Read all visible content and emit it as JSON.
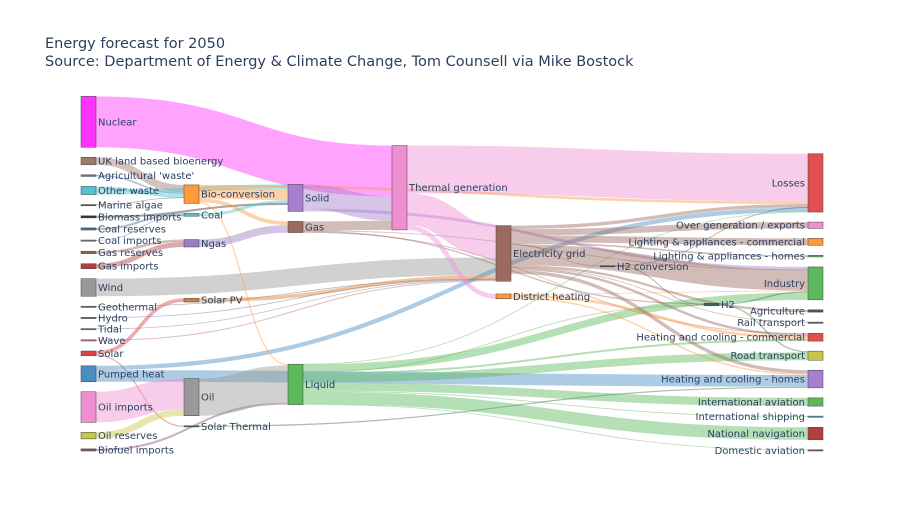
{
  "chart_data": {
    "type": "sankey",
    "title": "Energy forecast for 2050",
    "subtitle": "Source: Department of Energy & Climate Change, Tom Counsell via Mike Bostock",
    "nodes": [
      {
        "id": 0,
        "label": "Nuclear",
        "color": "#ff33ff",
        "col": 0
      },
      {
        "id": 1,
        "label": "UK land based bioenergy",
        "color": "#a0786e",
        "col": 0
      },
      {
        "id": 2,
        "label": "Agricultural 'waste'",
        "color": "#4a7fb5",
        "col": 0
      },
      {
        "id": 3,
        "label": "Other waste",
        "color": "#4fc3cf",
        "col": 0
      },
      {
        "id": 4,
        "label": "Marine algae",
        "color": "#555555",
        "col": 0
      },
      {
        "id": 5,
        "label": "Coal reserves",
        "color": "#4a6f8f",
        "col": 0
      },
      {
        "id": 6,
        "label": "Biomass imports",
        "color": "#333333",
        "col": 0
      },
      {
        "id": 7,
        "label": "Coal imports",
        "color": "#777777",
        "col": 0
      },
      {
        "id": 8,
        "label": "Gas reserves",
        "color": "#9c6a60",
        "col": 0
      },
      {
        "id": 9,
        "label": "Gas imports",
        "color": "#b04040",
        "col": 0
      },
      {
        "id": 10,
        "label": "Wind",
        "color": "#999999",
        "col": 0
      },
      {
        "id": 11,
        "label": "Geothermal",
        "color": "#666666",
        "col": 0
      },
      {
        "id": 12,
        "label": "Hydro",
        "color": "#4a6f8f",
        "col": 0
      },
      {
        "id": 13,
        "label": "Tidal",
        "color": "#7f6fa8",
        "col": 0
      },
      {
        "id": 14,
        "label": "Wave",
        "color": "#c07b7b",
        "col": 0
      },
      {
        "id": 15,
        "label": "Solar",
        "color": "#d94444",
        "col": 0
      },
      {
        "id": 16,
        "label": "Pumped heat",
        "color": "#4a8ec2",
        "col": 0
      },
      {
        "id": 17,
        "label": "Oil imports",
        "color": "#f08ed2",
        "col": 0
      },
      {
        "id": 18,
        "label": "Oil reserves",
        "color": "#c7c74a",
        "col": 0
      },
      {
        "id": 19,
        "label": "Biofuel imports",
        "color": "#8a4f7d",
        "col": 0
      },
      {
        "id": 20,
        "label": "Bio-conversion",
        "color": "#ff9a3c",
        "col": 1
      },
      {
        "id": 21,
        "label": "Coal",
        "color": "#4fc3cf",
        "col": 1
      },
      {
        "id": 22,
        "label": "Ngas",
        "color": "#9a7fc0",
        "col": 1
      },
      {
        "id": 23,
        "label": "Solar PV",
        "color": "#e07b2d",
        "col": 1
      },
      {
        "id": 24,
        "label": "Solar Thermal",
        "color": "#3a6b4a",
        "col": 1
      },
      {
        "id": 25,
        "label": "Oil",
        "color": "#999999",
        "col": 1
      },
      {
        "id": 26,
        "label": "Solid",
        "color": "#a67fcf",
        "col": 2
      },
      {
        "id": 27,
        "label": "Gas",
        "color": "#9c6a60",
        "col": 2
      },
      {
        "id": 28,
        "label": "Liquid",
        "color": "#5cb85c",
        "col": 2
      },
      {
        "id": 29,
        "label": "Thermal generation",
        "color": "#f08ed2",
        "col": 3
      },
      {
        "id": 30,
        "label": "District heating",
        "color": "#ff9a3c",
        "col": 4
      },
      {
        "id": 31,
        "label": "Electricity grid",
        "color": "#9c6a60",
        "col": 4
      },
      {
        "id": 32,
        "label": "H2 conversion",
        "color": "#444444",
        "col": 5
      },
      {
        "id": 33,
        "label": "H2",
        "color": "#3a6b4a",
        "col": 6
      },
      {
        "id": 34,
        "label": "Losses",
        "color": "#e05050",
        "col": 7
      },
      {
        "id": 35,
        "label": "Over generation / exports",
        "color": "#f08ed2",
        "col": 7
      },
      {
        "id": 36,
        "label": "Lighting & appliances - commercial",
        "color": "#ff9a3c",
        "col": 7
      },
      {
        "id": 37,
        "label": "Lighting & appliances - homes",
        "color": "#5cb85c",
        "col": 7
      },
      {
        "id": 38,
        "label": "Industry",
        "color": "#5cb85c",
        "col": 7
      },
      {
        "id": 39,
        "label": "Agriculture",
        "color": "#555555",
        "col": 7
      },
      {
        "id": 40,
        "label": "Rail transport",
        "color": "#555555",
        "col": 7
      },
      {
        "id": 41,
        "label": "Heating and cooling - commercial",
        "color": "#e05050",
        "col": 7
      },
      {
        "id": 42,
        "label": "Heating and cooling - homes",
        "color": "#a67fcf",
        "col": 7
      },
      {
        "id": 43,
        "label": "Road transport",
        "color": "#c7c74a",
        "col": 7
      },
      {
        "id": 44,
        "label": "International aviation",
        "color": "#5cb85c",
        "col": 7
      },
      {
        "id": 45,
        "label": "International shipping",
        "color": "#4a8ec2",
        "col": 7
      },
      {
        "id": 46,
        "label": "National navigation",
        "color": "#b04040",
        "col": 7
      },
      {
        "id": 47,
        "label": "Domestic aviation",
        "color": "#8a4f7d",
        "col": 7
      }
    ],
    "links": [
      {
        "s": 0,
        "t": 29,
        "v": 839.978
      },
      {
        "s": 1,
        "t": 20,
        "v": 124.729
      },
      {
        "s": 2,
        "t": 20,
        "v": 26.862
      },
      {
        "s": 3,
        "t": 20,
        "v": 56.691
      },
      {
        "s": 3,
        "t": 26,
        "v": 77.81
      },
      {
        "s": 4,
        "t": 20,
        "v": 4.375
      },
      {
        "s": 5,
        "t": 21,
        "v": 35
      },
      {
        "s": 6,
        "t": 26,
        "v": 35
      },
      {
        "s": 7,
        "t": 21,
        "v": 11.606
      },
      {
        "s": 8,
        "t": 22,
        "v": 40.719
      },
      {
        "s": 9,
        "t": 22,
        "v": 82.233
      },
      {
        "s": 10,
        "t": 31,
        "v": 289.366
      },
      {
        "s": 11,
        "t": 31,
        "v": 7.013
      },
      {
        "s": 12,
        "t": 31,
        "v": 6.995
      },
      {
        "s": 13,
        "t": 31,
        "v": 9.452
      },
      {
        "s": 14,
        "t": 31,
        "v": 19.013
      },
      {
        "s": 15,
        "t": 23,
        "v": 59.901
      },
      {
        "s": 15,
        "t": 24,
        "v": 19.263
      },
      {
        "s": 16,
        "t": 42,
        "v": 193.026
      },
      {
        "s": 16,
        "t": 34,
        "v": 70.672
      },
      {
        "s": 17,
        "t": 25,
        "v": 504.287
      },
      {
        "s": 18,
        "t": 25,
        "v": 107.703
      },
      {
        "s": 19,
        "t": 28,
        "v": 35
      },
      {
        "s": 20,
        "t": 26,
        "v": 182.01
      },
      {
        "s": 20,
        "t": 27,
        "v": 61.06
      },
      {
        "s": 20,
        "t": 28,
        "v": 19.58
      },
      {
        "s": 20,
        "t": 34,
        "v": 42
      },
      {
        "s": 21,
        "t": 26,
        "v": 46.477
      },
      {
        "s": 22,
        "t": 27,
        "v": 122.952
      },
      {
        "s": 23,
        "t": 31,
        "v": 59.901
      },
      {
        "s": 24,
        "t": 42,
        "v": 19.263
      },
      {
        "s": 25,
        "t": 28,
        "v": 611.99
      },
      {
        "s": 26,
        "t": 29,
        "v": 400.12
      },
      {
        "s": 26,
        "t": 38,
        "v": 46.184
      },
      {
        "s": 27,
        "t": 29,
        "v": 151.891
      },
      {
        "s": 27,
        "t": 38,
        "v": 2.096
      },
      {
        "s": 27,
        "t": 33,
        "v": 20.897
      },
      {
        "s": 27,
        "t": 41,
        "v": 9.009
      },
      {
        "s": 28,
        "t": 38,
        "v": 121.066
      },
      {
        "s": 28,
        "t": 43,
        "v": 128.69
      },
      {
        "s": 28,
        "t": 44,
        "v": 135.835
      },
      {
        "s": 28,
        "t": 45,
        "v": 14.458
      },
      {
        "s": 28,
        "t": 46,
        "v": 206.267
      },
      {
        "s": 28,
        "t": 47,
        "v": 3.64
      },
      {
        "s": 28,
        "t": 41,
        "v": 33.218
      },
      {
        "s": 28,
        "t": 34,
        "v": 4.413
      },
      {
        "s": 28,
        "t": 33,
        "v": 14.375
      },
      {
        "s": 29,
        "t": 34,
        "v": 787.129
      },
      {
        "s": 29,
        "t": 31,
        "v": 525.531
      },
      {
        "s": 29,
        "t": 30,
        "v": 79.329
      },
      {
        "s": 30,
        "t": 42,
        "v": 22.505
      },
      {
        "s": 30,
        "t": 41,
        "v": 46.184
      },
      {
        "s": 30,
        "t": 38,
        "v": 10.639
      },
      {
        "s": 31,
        "t": 35,
        "v": 104.453
      },
      {
        "s": 31,
        "t": 36,
        "v": 113.726
      },
      {
        "s": 31,
        "t": 37,
        "v": 27.14
      },
      {
        "s": 31,
        "t": 38,
        "v": 342.165
      },
      {
        "s": 31,
        "t": 39,
        "v": 37.797
      },
      {
        "s": 31,
        "t": 40,
        "v": 4.412
      },
      {
        "s": 31,
        "t": 41,
        "v": 40.858
      },
      {
        "s": 31,
        "t": 42,
        "v": 56.691
      },
      {
        "s": 31,
        "t": 32,
        "v": 7.863
      },
      {
        "s": 31,
        "t": 34,
        "v": 56.587
      },
      {
        "s": 32,
        "t": 33,
        "v": 6.242
      },
      {
        "s": 32,
        "t": 34,
        "v": 1.621
      },
      {
        "s": 33,
        "t": 38,
        "v": 20.897
      },
      {
        "s": 33,
        "t": 43,
        "v": 20.617
      }
    ]
  }
}
